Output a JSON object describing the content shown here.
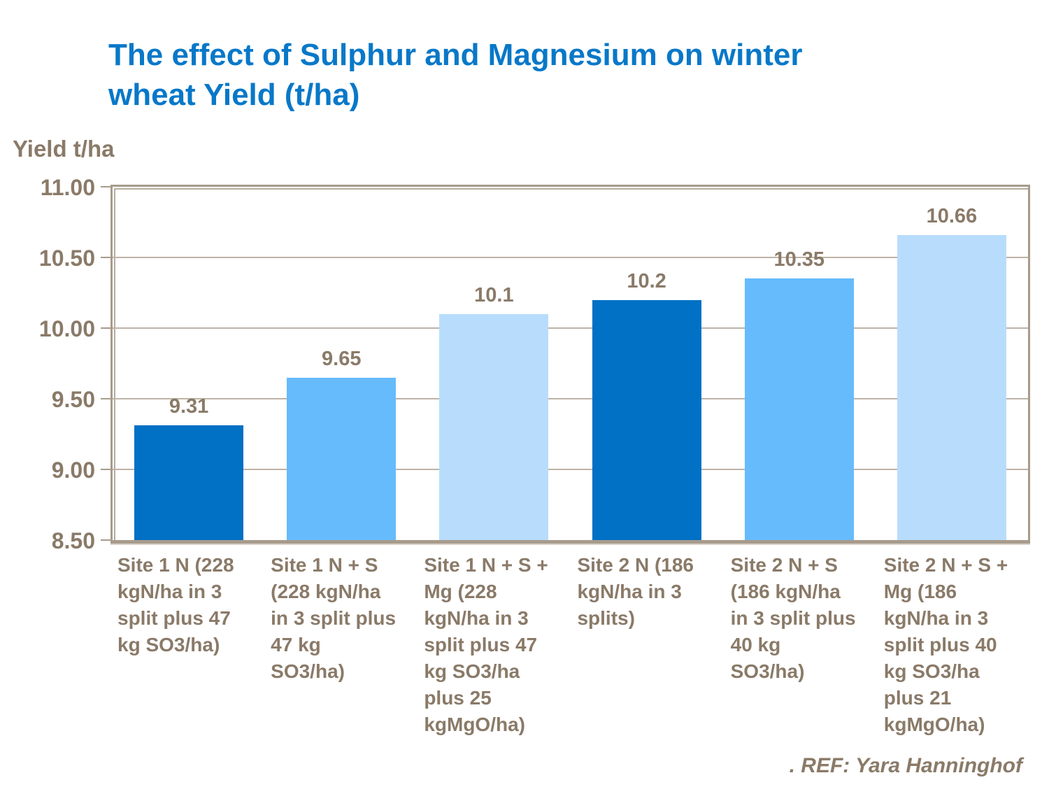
{
  "title": "The effect of Sulphur and Magnesium on winter\nwheat Yield (t/ha)",
  "footer_ref": ". REF: Yara Hanninghof",
  "colors": {
    "title_blue": "#0878C8",
    "label_taupe": "#8A7A68",
    "axis_line": "#A79B8C",
    "gridline": "#BDB3A6",
    "bar_dark_blue": "#0071C5",
    "bar_medium_blue": "#66BBFC",
    "bar_light_blue": "#B8DDFC",
    "background": "#FFFFFF"
  },
  "chart_data": {
    "type": "bar",
    "title": "The effect of Sulphur and Magnesium on winter wheat Yield (t/ha)",
    "ylabel": "Yield t/ha",
    "xlabel": "",
    "ylim": [
      8.5,
      11.0
    ],
    "ytick_interval": 0.5,
    "yticks_top_to_bottom": [
      "11.00",
      "10.50",
      "10.00",
      "9.50",
      "9.00",
      "8.50"
    ],
    "grid": true,
    "legend": "none",
    "categories": [
      "Site 1 N (228\nkgN/ha in 3\nsplit plus 47\nkg SO3/ha)",
      "Site 1 N + S\n(228 kgN/ha\nin 3 split plus\n47 kg\nSO3/ha)",
      "Site 1 N + S +\nMg (228\nkgN/ha in 3\nsplit plus 47\nkg SO3/ha\nplus 25\nkgMgO/ha)",
      "Site 2 N (186\nkgN/ha in 3\nsplits)",
      "Site 2 N + S\n(186 kgN/ha\nin 3 split plus\n40 kg\nSO3/ha)",
      "Site 2 N + S +\nMg (186\nkgN/ha in 3\nsplit plus 40\nkg SO3/ha\nplus 21\nkgMgO/ha)"
    ],
    "values": [
      9.31,
      9.65,
      10.1,
      10.2,
      10.35,
      10.66
    ],
    "value_labels": [
      "9.31",
      "9.65",
      "10.1",
      "10.2",
      "10.35",
      "10.66"
    ],
    "bar_colors": [
      "#0071C5",
      "#66BBFC",
      "#B8DDFC",
      "#0071C5",
      "#66BBFC",
      "#B8DDFC"
    ],
    "annotation": ". REF: Yara Hanninghof"
  }
}
